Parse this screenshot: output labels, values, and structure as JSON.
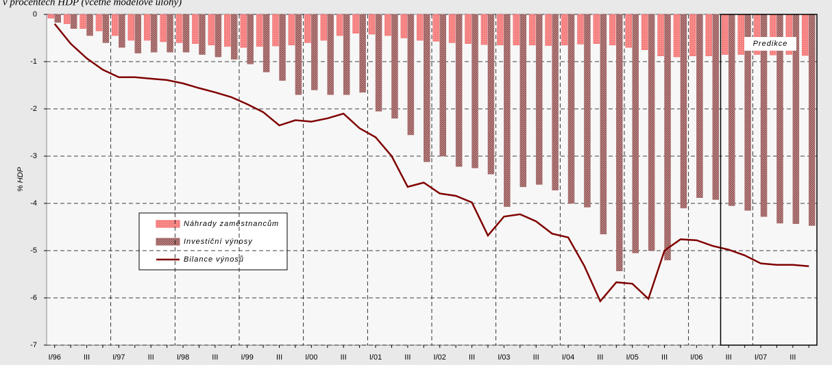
{
  "chart_data": {
    "type": "bar-line",
    "title": "v procentech HDP  (včetně modelové úlohy)",
    "y_label": "% HDP",
    "categories": [
      "I/96",
      null,
      "III",
      null,
      "I/97",
      null,
      "III",
      null,
      "I/98",
      null,
      "III",
      null,
      "I/99",
      null,
      "III",
      null,
      "I/00",
      null,
      "III",
      null,
      "I/01",
      null,
      "III",
      null,
      "I/02",
      null,
      "III",
      null,
      "I/03",
      null,
      "III",
      null,
      "I/04",
      null,
      "III",
      null,
      "I/05",
      null,
      "III",
      null,
      "I/06",
      null,
      "III",
      null,
      "I/07",
      null,
      "III",
      null
    ],
    "series": [
      {
        "name": "Náhrady zaměstnancům",
        "kind": "bar",
        "color": "#f06a6a",
        "values": [
          -0.08,
          -0.2,
          -0.3,
          -0.35,
          -0.45,
          -0.55,
          -0.55,
          -0.58,
          -0.6,
          -0.62,
          -0.65,
          -0.68,
          -0.7,
          -0.68,
          -0.67,
          -0.65,
          -0.6,
          -0.55,
          -0.45,
          -0.4,
          -0.42,
          -0.45,
          -0.5,
          -0.55,
          -0.57,
          -0.6,
          -0.62,
          -0.64,
          -0.65,
          -0.65,
          -0.65,
          -0.66,
          -0.65,
          -0.63,
          -0.62,
          -0.65,
          -0.7,
          -0.75,
          -0.88,
          -0.9,
          -0.88,
          -0.88,
          -0.85,
          -0.85,
          -0.85,
          -0.86,
          -0.85,
          -0.87
        ]
      },
      {
        "name": "Investiční výnosy",
        "kind": "bar",
        "color": "#a86a6a",
        "values": [
          -0.17,
          -0.3,
          -0.45,
          -0.6,
          -0.7,
          -0.82,
          -0.8,
          -0.8,
          -0.8,
          -0.85,
          -0.9,
          -0.95,
          -1.05,
          -1.22,
          -1.4,
          -1.7,
          -1.6,
          -1.7,
          -1.7,
          -1.65,
          -2.05,
          -2.2,
          -2.55,
          -3.12,
          -3.0,
          -3.22,
          -3.25,
          -3.38,
          -4.07,
          -3.65,
          -3.6,
          -3.72,
          -4.0,
          -4.08,
          -4.65,
          -5.43,
          -5.05,
          -5.0,
          -5.2,
          -4.1,
          -3.88,
          -3.92,
          -4.05,
          -4.15,
          -4.28,
          -4.42,
          -4.43,
          -4.47
        ]
      },
      {
        "name": "Bilance výnosů",
        "kind": "line",
        "color": "#800000",
        "values": [
          -0.2,
          -0.62,
          -0.93,
          -1.17,
          -1.33,
          -1.33,
          -1.36,
          -1.39,
          -1.46,
          -1.56,
          -1.65,
          -1.75,
          -1.9,
          -2.07,
          -2.35,
          -2.24,
          -2.27,
          -2.2,
          -2.1,
          -2.41,
          -2.6,
          -3.0,
          -3.65,
          -3.56,
          -3.79,
          -3.84,
          -3.98,
          -4.68,
          -4.28,
          -4.23,
          -4.38,
          -4.64,
          -4.72,
          -5.32,
          -6.07,
          -5.67,
          -5.7,
          -6.02,
          -5.0,
          -4.76,
          -4.78,
          -4.9,
          -4.98,
          -5.1,
          -5.27,
          -5.3,
          -5.3,
          -5.33
        ]
      }
    ],
    "ylim": [
      -7,
      0
    ],
    "yticks": [
      0,
      -1,
      -2,
      -3,
      -4,
      -5,
      -6,
      -7
    ],
    "grid": true,
    "legend_position": "center-left",
    "annotations": [
      {
        "text": "Predikce",
        "start_index": 42
      }
    ]
  }
}
